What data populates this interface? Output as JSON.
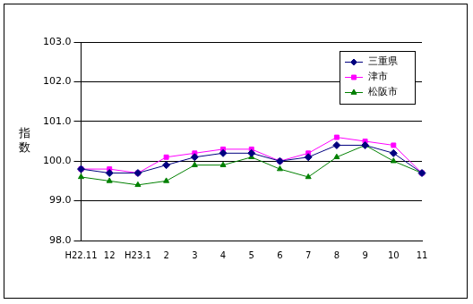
{
  "chart_data": {
    "type": "line",
    "y_label": "指数",
    "categories": [
      "H22.11",
      "12",
      "H23.1",
      "2",
      "3",
      "4",
      "5",
      "6",
      "7",
      "8",
      "9",
      "10",
      "11"
    ],
    "series": [
      {
        "name": "三重県",
        "color": "#000080",
        "marker": "diamond",
        "values": [
          99.8,
          99.7,
          99.7,
          99.9,
          100.1,
          100.2,
          100.2,
          100.0,
          100.1,
          100.4,
          100.4,
          100.2,
          99.7
        ]
      },
      {
        "name": "津市",
        "color": "#ff00ff",
        "marker": "square",
        "values": [
          99.8,
          99.8,
          99.7,
          100.1,
          100.2,
          100.3,
          100.3,
          100.0,
          100.2,
          100.6,
          100.5,
          100.4,
          99.7
        ]
      },
      {
        "name": "松阪市",
        "color": "#008000",
        "marker": "triangle",
        "values": [
          99.6,
          99.5,
          99.4,
          99.5,
          99.9,
          99.9,
          100.1,
          99.8,
          99.6,
          100.1,
          100.4,
          100.0,
          99.7
        ]
      }
    ],
    "ylim": [
      98,
      103
    ],
    "yticks": [
      {
        "value": 98,
        "label": "98.0"
      },
      {
        "value": 99,
        "label": "99.0"
      },
      {
        "value": 100,
        "label": "100.0"
      },
      {
        "value": 101,
        "label": "101.0"
      },
      {
        "value": 102,
        "label": "102.0"
      },
      {
        "value": 103,
        "label": "103.0"
      }
    ],
    "grid": true,
    "legend": "upper right"
  }
}
